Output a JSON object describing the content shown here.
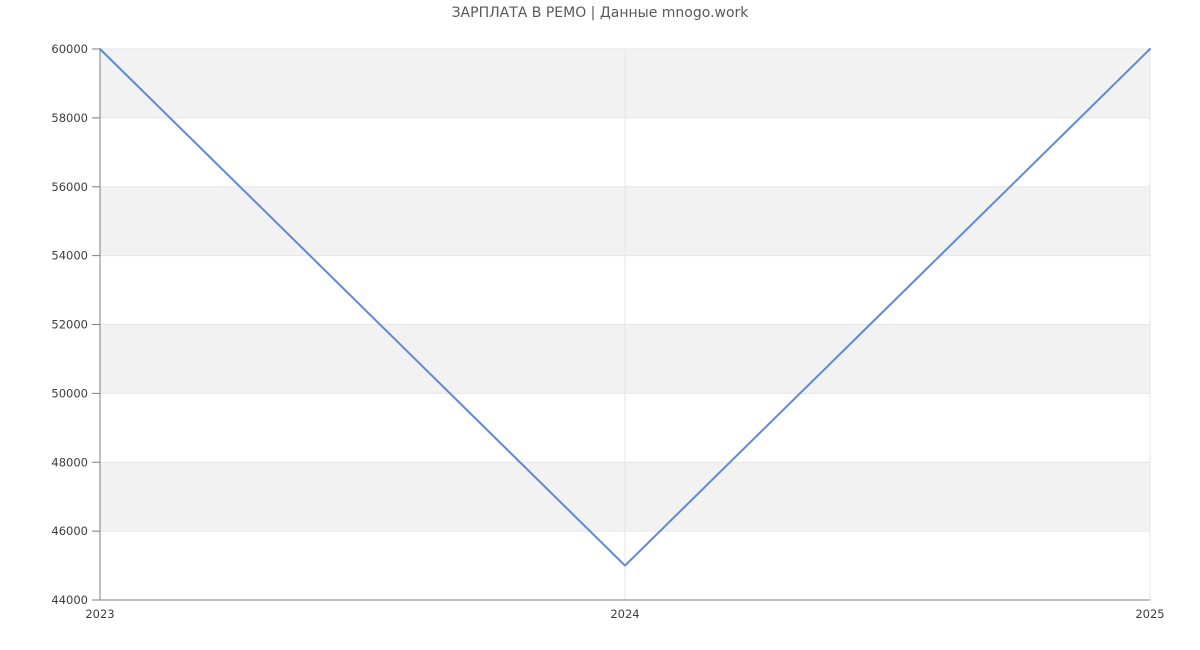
{
  "title": "ЗАРПЛАТА В РЕМО | Данные mnogo.work",
  "colors": {
    "background": "#ffffff",
    "line": "#5e88d8",
    "band": "#f2f2f2",
    "grid": "#e6e6e6",
    "axis": "#7f7f7f",
    "tick_label": "#3d3d3d",
    "title": "#595959"
  },
  "chart_data": {
    "type": "line",
    "title": "ЗАРПЛАТА В РЕМО | Данные mnogo.work",
    "x": [
      2023,
      2024,
      2025
    ],
    "series": [
      {
        "name": "ЗАРПЛАТА В РЕМО",
        "values": [
          60000,
          45000,
          60000
        ]
      }
    ],
    "xlabel": "",
    "ylabel": "",
    "xlim": [
      2023,
      2025
    ],
    "ylim": [
      44000,
      60000
    ],
    "yticks": [
      44000,
      46000,
      48000,
      50000,
      52000,
      54000,
      56000,
      58000,
      60000
    ],
    "ytick_labels": [
      "44000",
      "46000",
      "48000",
      "50000",
      "52000",
      "54000",
      "56000",
      "58000",
      "60000"
    ],
    "xticks": [
      2023,
      2024,
      2025
    ],
    "xtick_labels": [
      "2023",
      "2024",
      "2025"
    ],
    "grid": true,
    "alternating_bands": true,
    "legend": false,
    "markers": false
  }
}
